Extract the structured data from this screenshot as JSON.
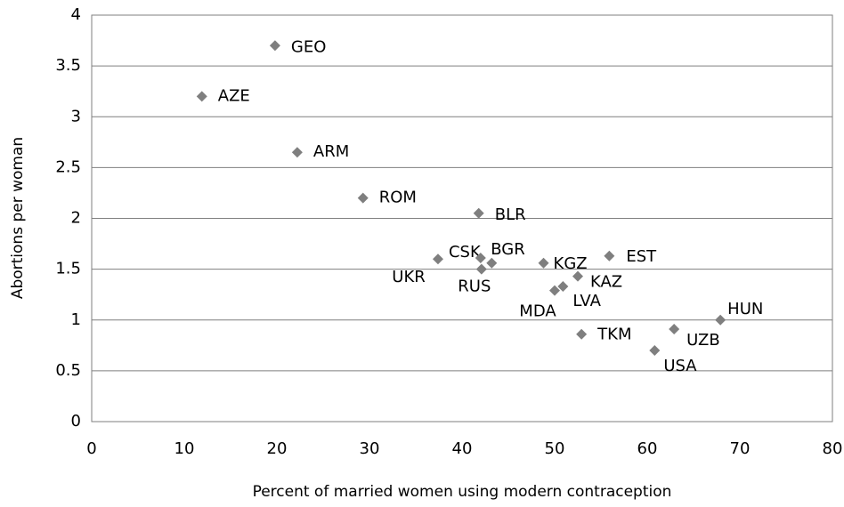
{
  "chart_data": {
    "type": "scatter",
    "xlabel": "Percent of married women using modern contraception",
    "ylabel": "Abortions per woman",
    "labels": [
      "GEO",
      "AZE",
      "ARM",
      "ROM",
      "BLR",
      "CSK",
      "UKR",
      "RUS",
      "BGR",
      "KGZ",
      "KAZ",
      "EST",
      "MDA",
      "LVA",
      "TKM",
      "USA",
      "UZB",
      "HUN"
    ],
    "x": [
      19.8,
      11.9,
      22.2,
      29.3,
      41.8,
      37.4,
      42.0,
      42.1,
      43.2,
      48.8,
      52.5,
      55.9,
      50.0,
      50.9,
      52.9,
      60.8,
      62.9,
      67.9
    ],
    "y": [
      3.7,
      3.2,
      2.65,
      2.2,
      2.05,
      1.6,
      1.61,
      1.5,
      1.56,
      1.56,
      1.43,
      1.63,
      1.29,
      1.33,
      0.86,
      0.7,
      0.91,
      1.0
    ],
    "color": "#7f7f7f",
    "xlim": [
      0,
      80
    ],
    "xticks": [
      0,
      10,
      20,
      30,
      40,
      50,
      60,
      70,
      80
    ],
    "ylim": [
      0,
      4
    ],
    "yticks": [
      0,
      0.5,
      1,
      1.5,
      2,
      2.5,
      3,
      3.5,
      4
    ],
    "grid": true
  }
}
